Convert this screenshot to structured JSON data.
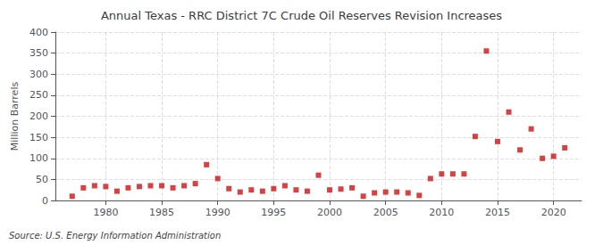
{
  "chart_data": {
    "type": "scatter",
    "title": "Annual Texas - RRC District 7C Crude Oil Reserves Revision Increases",
    "ylabel": "Million Barrels",
    "source": "Source: U.S. Energy Information Administration",
    "color": "#cc1111",
    "marker": "square",
    "grid": true,
    "xlim": [
      1975.5,
      2022.5
    ],
    "xticks": [
      1980,
      1985,
      1990,
      1995,
      2000,
      2005,
      2010,
      2015,
      2020
    ],
    "ylim": [
      0,
      400
    ],
    "yticks": [
      0,
      50,
      100,
      150,
      200,
      250,
      300,
      350,
      400
    ],
    "x": [
      1977,
      1978,
      1979,
      1980,
      1981,
      1982,
      1983,
      1984,
      1985,
      1986,
      1987,
      1988,
      1989,
      1990,
      1991,
      1992,
      1993,
      1994,
      1995,
      1996,
      1997,
      1998,
      1999,
      2000,
      2001,
      2002,
      2003,
      2004,
      2005,
      2006,
      2007,
      2008,
      2009,
      2010,
      2011,
      2012,
      2013,
      2014,
      2015,
      2016,
      2017,
      2018,
      2019,
      2020,
      2021
    ],
    "values": [
      10,
      30,
      35,
      33,
      22,
      30,
      33,
      35,
      35,
      30,
      35,
      40,
      85,
      52,
      28,
      20,
      25,
      22,
      28,
      35,
      25,
      22,
      60,
      25,
      27,
      30,
      10,
      18,
      20,
      20,
      18,
      12,
      52,
      63,
      63,
      63,
      152,
      355,
      140,
      210,
      120,
      170,
      100,
      105,
      125
    ]
  }
}
